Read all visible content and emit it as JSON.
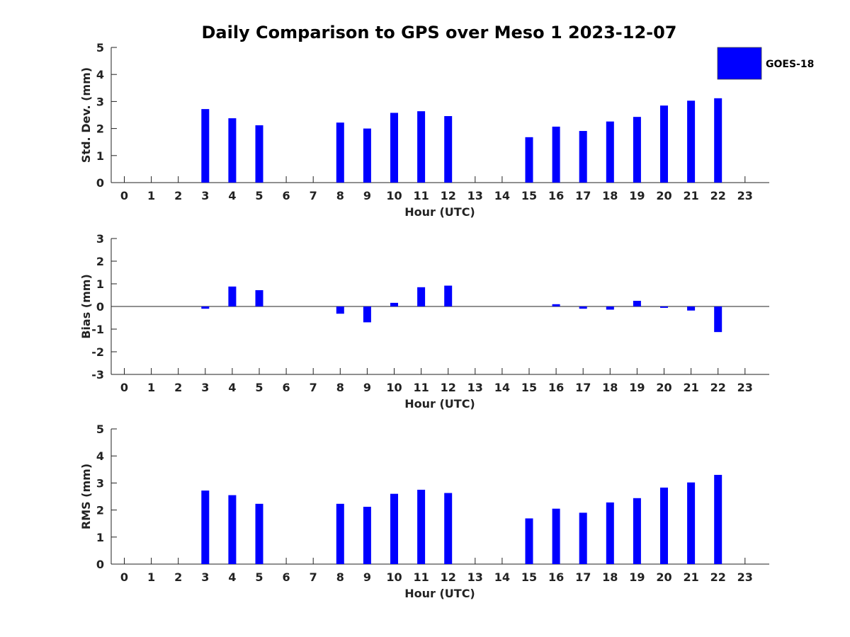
{
  "title": "Daily Comparison to GPS over Meso 1 2023-12-07",
  "legend": {
    "label": "GOES-18",
    "color": "#0000ff",
    "placement": "top-right"
  },
  "bar_color": "#0000ff",
  "chart_data": [
    {
      "type": "bar",
      "name": "std-dev",
      "xlabel": "Hour (UTC)",
      "ylabel": "Std. Dev. (mm)",
      "ylim": [
        0,
        5
      ],
      "yticks": [
        0,
        1,
        2,
        3,
        4,
        5
      ],
      "categories": [
        0,
        1,
        2,
        3,
        4,
        5,
        6,
        7,
        8,
        9,
        10,
        11,
        12,
        13,
        14,
        15,
        16,
        17,
        18,
        19,
        20,
        21,
        22,
        23
      ],
      "series": [
        {
          "name": "GOES-18",
          "values": [
            null,
            null,
            null,
            2.72,
            2.38,
            2.12,
            null,
            null,
            2.22,
            2.0,
            2.58,
            2.64,
            2.46,
            null,
            null,
            1.68,
            2.07,
            1.91,
            2.26,
            2.43,
            2.85,
            3.03,
            3.12,
            null
          ]
        }
      ]
    },
    {
      "type": "bar",
      "name": "bias",
      "xlabel": "Hour (UTC)",
      "ylabel": "Bias (mm)",
      "ylim": [
        -3,
        3
      ],
      "yticks": [
        -3,
        -2,
        -1,
        0,
        1,
        2,
        3
      ],
      "zero_line": true,
      "categories": [
        0,
        1,
        2,
        3,
        4,
        5,
        6,
        7,
        8,
        9,
        10,
        11,
        12,
        13,
        14,
        15,
        16,
        17,
        18,
        19,
        20,
        21,
        22,
        23
      ],
      "series": [
        {
          "name": "GOES-18",
          "values": [
            null,
            null,
            null,
            -0.1,
            0.88,
            0.72,
            null,
            null,
            -0.32,
            -0.7,
            0.16,
            0.85,
            0.92,
            null,
            null,
            null,
            0.1,
            -0.1,
            -0.14,
            0.25,
            -0.06,
            -0.18,
            -1.13,
            null
          ]
        }
      ]
    },
    {
      "type": "bar",
      "name": "rms",
      "xlabel": "Hour (UTC)",
      "ylabel": "RMS (mm)",
      "ylim": [
        0,
        5
      ],
      "yticks": [
        0,
        1,
        2,
        3,
        4,
        5
      ],
      "categories": [
        0,
        1,
        2,
        3,
        4,
        5,
        6,
        7,
        8,
        9,
        10,
        11,
        12,
        13,
        14,
        15,
        16,
        17,
        18,
        19,
        20,
        21,
        22,
        23
      ],
      "series": [
        {
          "name": "GOES-18",
          "values": [
            null,
            null,
            null,
            2.72,
            2.55,
            2.23,
            null,
            null,
            2.23,
            2.12,
            2.6,
            2.75,
            2.63,
            null,
            null,
            1.69,
            2.05,
            1.9,
            2.28,
            2.44,
            2.83,
            3.02,
            3.3,
            null
          ]
        }
      ]
    }
  ]
}
